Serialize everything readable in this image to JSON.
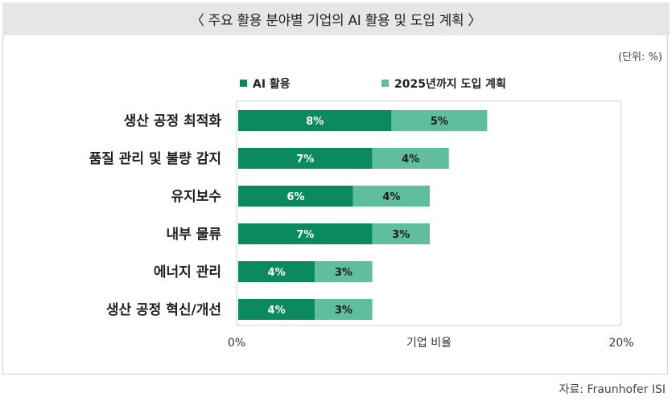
{
  "header": {
    "title": "〈 주요 활용 분야별 기업의 AI 활용 및 도입 계획 〉",
    "unit": "(단위: %)",
    "source": "자료: Fraunhofer ISI"
  },
  "colors": {
    "series1": "#0b8a5e",
    "series2": "#5fbf9d"
  },
  "chart_data": {
    "type": "bar",
    "orientation": "horizontal",
    "stacked": true,
    "categories": [
      "생산 공정 최적화",
      "품질 관리 및 불량 감지",
      "유지보수",
      "내부 물류",
      "에너지 관리",
      "생산 공정 혁신/개선"
    ],
    "series": [
      {
        "name": "AI 활용",
        "values": [
          8,
          7,
          6,
          7,
          4,
          4
        ],
        "labels": [
          "8%",
          "7%",
          "6%",
          "7%",
          "4%",
          "4%"
        ]
      },
      {
        "name": "2025년까지 도입 계획",
        "values": [
          5,
          4,
          4,
          3,
          3,
          3
        ],
        "labels": [
          "5%",
          "4%",
          "4%",
          "3%",
          "3%",
          "3%"
        ]
      }
    ],
    "xlabel": "기업 비율",
    "xlim": [
      0,
      20
    ],
    "xticks": [
      "0%",
      "20%"
    ],
    "legend": "top",
    "grid": false
  }
}
